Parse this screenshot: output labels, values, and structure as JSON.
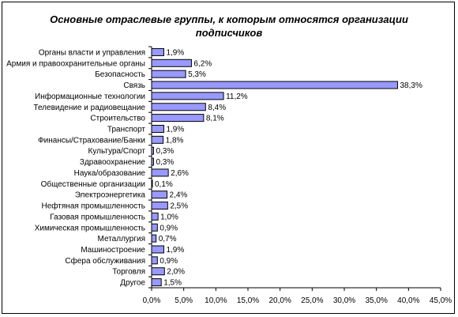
{
  "chart_data": {
    "type": "bar",
    "orientation": "horizontal",
    "title_lines": [
      "Основные отраслевые группы, к которым относятся организации",
      "подписчиков"
    ],
    "categories": [
      "Органы власти и управления",
      "Армия и правоохранительные органы",
      "Безопасность",
      "Связь",
      "Информационные технологии",
      "Телевидение и радиовещание",
      "Строительство",
      "Транспорт",
      "Финансы/Страхование/Банки",
      "Культура/Спорт",
      "Здравоохранение",
      "Наука/образование",
      "Общественные организации",
      "Электроэнергетика",
      "Нефтяная промышленность",
      "Газовая промышленность",
      "Химическая промышленность",
      "Металлургия",
      "Машиностроение",
      "Сфера обслуживания",
      "Торговля",
      "Другое"
    ],
    "values": [
      1.9,
      6.2,
      5.3,
      38.3,
      11.2,
      8.4,
      8.1,
      1.9,
      1.8,
      0.3,
      0.3,
      2.6,
      0.1,
      2.4,
      2.5,
      1.0,
      0.9,
      0.7,
      1.9,
      0.9,
      2.0,
      1.5
    ],
    "value_labels": [
      "1,9%",
      "6,2%",
      "5,3%",
      "38,3%",
      "11,2%",
      "8,4%",
      "8,1%",
      "1,9%",
      "1,8%",
      "0,3%",
      "0,3%",
      "2,6%",
      "0,1%",
      "2,4%",
      "2,5%",
      "1,0%",
      "0,9%",
      "0,7%",
      "1,9%",
      "0,9%",
      "2,0%",
      "1,5%"
    ],
    "xlim": [
      0,
      45
    ],
    "x_ticks": [
      "0,0%",
      "5,0%",
      "10,0%",
      "15,0%",
      "20,0%",
      "25,0%",
      "30,0%",
      "35,0%",
      "40,0%",
      "45,0%"
    ],
    "grid": false,
    "legend": "none",
    "bar_color": "#9999ff"
  }
}
